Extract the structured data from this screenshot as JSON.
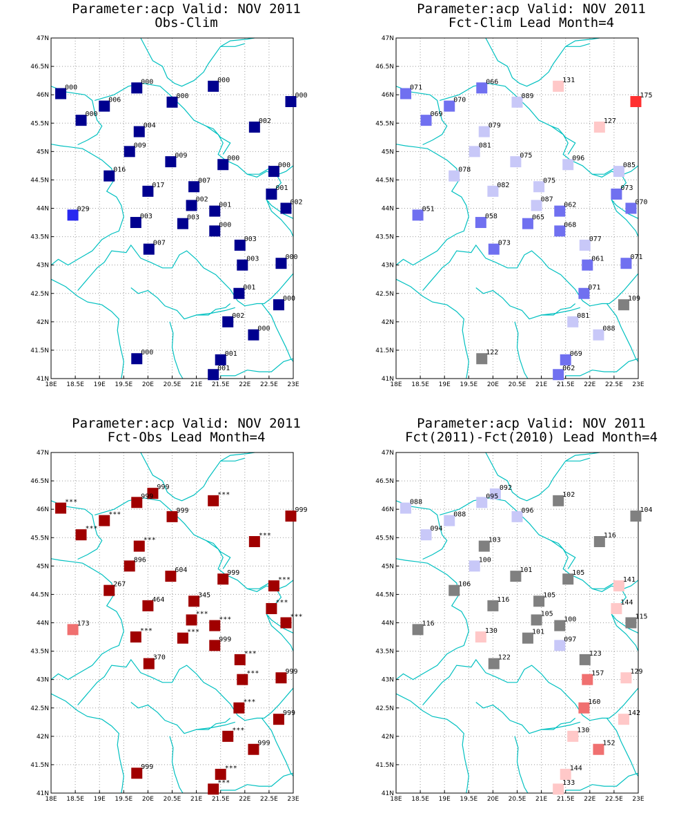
{
  "axes": {
    "x_ticks": [
      "18E",
      "18.5E",
      "19E",
      "19.5E",
      "20E",
      "20.5E",
      "21E",
      "21.5E",
      "22E",
      "22.5E",
      "23E"
    ],
    "y_ticks": [
      "41N",
      "41.5N",
      "42N",
      "42.5N",
      "43N",
      "43.5N",
      "44N",
      "44.5N",
      "45N",
      "45.5N",
      "46N",
      "46.5N",
      "47N"
    ],
    "lon_range": [
      18,
      23
    ],
    "lat_range": [
      41,
      47
    ],
    "grid": true
  },
  "colors": {
    "frame": "#000000",
    "grid": "#999999",
    "border_line": "#00c0c0"
  },
  "panels": [
    {
      "title1": "Parameter:acp Valid: NOV 2011",
      "title2": "Obs-Clim",
      "stations": [
        {
          "lon": 18.2,
          "lat": 46.02,
          "label": "000",
          "color": "#00008f"
        },
        {
          "lon": 19.77,
          "lat": 46.12,
          "label": "000",
          "color": "#00008f"
        },
        {
          "lon": 21.35,
          "lat": 46.15,
          "label": "000",
          "color": "#00008f"
        },
        {
          "lon": 22.95,
          "lat": 45.88,
          "label": "000",
          "color": "#00008f"
        },
        {
          "lon": 19.1,
          "lat": 45.8,
          "label": "006",
          "color": "#00008f"
        },
        {
          "lon": 20.5,
          "lat": 45.87,
          "label": "000",
          "color": "#00008f"
        },
        {
          "lon": 18.62,
          "lat": 45.55,
          "label": "000",
          "color": "#00008f"
        },
        {
          "lon": 22.2,
          "lat": 45.43,
          "label": "002",
          "color": "#00008f"
        },
        {
          "lon": 19.82,
          "lat": 45.35,
          "label": "004",
          "color": "#00008f"
        },
        {
          "lon": 19.62,
          "lat": 45.0,
          "label": "009",
          "color": "#00008f"
        },
        {
          "lon": 20.47,
          "lat": 44.82,
          "label": "009",
          "color": "#00008f"
        },
        {
          "lon": 21.55,
          "lat": 44.77,
          "label": "000",
          "color": "#00008f"
        },
        {
          "lon": 22.6,
          "lat": 44.65,
          "label": "000",
          "color": "#00008f"
        },
        {
          "lon": 19.2,
          "lat": 44.57,
          "label": "016",
          "color": "#00008f"
        },
        {
          "lon": 20.0,
          "lat": 44.3,
          "label": "017",
          "color": "#00008f"
        },
        {
          "lon": 20.95,
          "lat": 44.38,
          "label": "007",
          "color": "#00008f"
        },
        {
          "lon": 22.55,
          "lat": 44.25,
          "label": "001",
          "color": "#00008f"
        },
        {
          "lon": 20.9,
          "lat": 44.05,
          "label": "002",
          "color": "#00008f"
        },
        {
          "lon": 21.38,
          "lat": 43.95,
          "label": "001",
          "color": "#00008f"
        },
        {
          "lon": 22.85,
          "lat": 44.0,
          "label": "002",
          "color": "#00008f"
        },
        {
          "lon": 18.45,
          "lat": 43.88,
          "label": "029",
          "color": "#2828f0"
        },
        {
          "lon": 19.75,
          "lat": 43.75,
          "label": "003",
          "color": "#00008f"
        },
        {
          "lon": 20.72,
          "lat": 43.73,
          "label": "003",
          "color": "#00008f"
        },
        {
          "lon": 21.38,
          "lat": 43.6,
          "label": "000",
          "color": "#00008f"
        },
        {
          "lon": 21.9,
          "lat": 43.35,
          "label": "003",
          "color": "#00008f"
        },
        {
          "lon": 20.02,
          "lat": 43.28,
          "label": "007",
          "color": "#00008f"
        },
        {
          "lon": 21.95,
          "lat": 43.0,
          "label": "003",
          "color": "#00008f"
        },
        {
          "lon": 22.75,
          "lat": 43.03,
          "label": "000",
          "color": "#00008f"
        },
        {
          "lon": 21.88,
          "lat": 42.5,
          "label": "001",
          "color": "#00008f"
        },
        {
          "lon": 22.7,
          "lat": 42.3,
          "label": "000",
          "color": "#00008f"
        },
        {
          "lon": 21.65,
          "lat": 42.0,
          "label": "002",
          "color": "#00008f"
        },
        {
          "lon": 22.18,
          "lat": 41.77,
          "label": "000",
          "color": "#00008f"
        },
        {
          "lon": 19.77,
          "lat": 41.35,
          "label": "000",
          "color": "#00008f"
        },
        {
          "lon": 21.5,
          "lat": 41.33,
          "label": "001",
          "color": "#00008f"
        },
        {
          "lon": 21.35,
          "lat": 41.07,
          "label": "001",
          "color": "#00008f"
        }
      ]
    },
    {
      "title1": "Parameter:acp Valid: NOV 2011",
      "title2": "Fct-Clim Lead Month=4",
      "stations": [
        {
          "lon": 18.2,
          "lat": 46.02,
          "label": "071",
          "color": "#7070f0"
        },
        {
          "lon": 19.77,
          "lat": 46.12,
          "label": "066",
          "color": "#7070f0"
        },
        {
          "lon": 21.35,
          "lat": 46.15,
          "label": "131",
          "color": "#ffc8c8"
        },
        {
          "lon": 22.95,
          "lat": 45.88,
          "label": "175",
          "color": "#ff3030"
        },
        {
          "lon": 19.1,
          "lat": 45.8,
          "label": "070",
          "color": "#7070f0"
        },
        {
          "lon": 20.5,
          "lat": 45.87,
          "label": "089",
          "color": "#c8c8f8"
        },
        {
          "lon": 18.62,
          "lat": 45.55,
          "label": "069",
          "color": "#7070f0"
        },
        {
          "lon": 22.2,
          "lat": 45.43,
          "label": "127",
          "color": "#ffc8c8"
        },
        {
          "lon": 19.82,
          "lat": 45.35,
          "label": "079",
          "color": "#c8c8f8"
        },
        {
          "lon": 19.62,
          "lat": 45.0,
          "label": "081",
          "color": "#c8c8f8"
        },
        {
          "lon": 20.47,
          "lat": 44.82,
          "label": "075",
          "color": "#c8c8f8"
        },
        {
          "lon": 21.55,
          "lat": 44.77,
          "label": "096",
          "color": "#c8c8f8"
        },
        {
          "lon": 22.6,
          "lat": 44.65,
          "label": "085",
          "color": "#c8c8f8"
        },
        {
          "lon": 19.2,
          "lat": 44.57,
          "label": "078",
          "color": "#c8c8f8"
        },
        {
          "lon": 20.0,
          "lat": 44.3,
          "label": "082",
          "color": "#c8c8f8"
        },
        {
          "lon": 20.95,
          "lat": 44.38,
          "label": "075",
          "color": "#c8c8f8"
        },
        {
          "lon": 22.55,
          "lat": 44.25,
          "label": "073",
          "color": "#7070f0"
        },
        {
          "lon": 20.9,
          "lat": 44.05,
          "label": "087",
          "color": "#c8c8f8"
        },
        {
          "lon": 21.38,
          "lat": 43.95,
          "label": "062",
          "color": "#7070f0"
        },
        {
          "lon": 22.85,
          "lat": 44.0,
          "label": "070",
          "color": "#7070f0"
        },
        {
          "lon": 18.45,
          "lat": 43.88,
          "label": "051",
          "color": "#7070f0"
        },
        {
          "lon": 19.75,
          "lat": 43.75,
          "label": "058",
          "color": "#7070f0"
        },
        {
          "lon": 20.72,
          "lat": 43.73,
          "label": "065",
          "color": "#7070f0"
        },
        {
          "lon": 21.38,
          "lat": 43.6,
          "label": "068",
          "color": "#7070f0"
        },
        {
          "lon": 21.9,
          "lat": 43.35,
          "label": "077",
          "color": "#c8c8f8"
        },
        {
          "lon": 20.02,
          "lat": 43.28,
          "label": "073",
          "color": "#7070f0"
        },
        {
          "lon": 21.95,
          "lat": 43.0,
          "label": "061",
          "color": "#7070f0"
        },
        {
          "lon": 22.75,
          "lat": 43.03,
          "label": "071",
          "color": "#7070f0"
        },
        {
          "lon": 21.88,
          "lat": 42.5,
          "label": "071",
          "color": "#7070f0"
        },
        {
          "lon": 22.7,
          "lat": 42.3,
          "label": "109",
          "color": "#808080"
        },
        {
          "lon": 21.65,
          "lat": 42.0,
          "label": "081",
          "color": "#c8c8f8"
        },
        {
          "lon": 22.18,
          "lat": 41.77,
          "label": "088",
          "color": "#c8c8f8"
        },
        {
          "lon": 19.77,
          "lat": 41.35,
          "label": "122",
          "color": "#808080"
        },
        {
          "lon": 21.5,
          "lat": 41.33,
          "label": "069",
          "color": "#7070f0"
        },
        {
          "lon": 21.35,
          "lat": 41.07,
          "label": "062",
          "color": "#7070f0"
        }
      ]
    },
    {
      "title1": "Parameter:acp Valid: NOV 2011",
      "title2": "Fct-Obs Lead Month=4",
      "stations": [
        {
          "lon": 18.2,
          "lat": 46.02,
          "label": "***",
          "color": "#a00000"
        },
        {
          "lon": 20.1,
          "lat": 46.28,
          "label": "999",
          "color": "#a00000"
        },
        {
          "lon": 19.77,
          "lat": 46.12,
          "label": "999",
          "color": "#a00000"
        },
        {
          "lon": 21.35,
          "lat": 46.15,
          "label": "***",
          "color": "#a00000"
        },
        {
          "lon": 22.95,
          "lat": 45.88,
          "label": "999",
          "color": "#a00000"
        },
        {
          "lon": 19.1,
          "lat": 45.8,
          "label": "***",
          "color": "#a00000"
        },
        {
          "lon": 20.5,
          "lat": 45.87,
          "label": "999",
          "color": "#a00000"
        },
        {
          "lon": 18.62,
          "lat": 45.55,
          "label": "***",
          "color": "#a00000"
        },
        {
          "lon": 22.2,
          "lat": 45.43,
          "label": "***",
          "color": "#a00000"
        },
        {
          "lon": 19.82,
          "lat": 45.35,
          "label": "***",
          "color": "#a00000"
        },
        {
          "lon": 19.62,
          "lat": 45.0,
          "label": "896",
          "color": "#a00000"
        },
        {
          "lon": 20.47,
          "lat": 44.82,
          "label": "604",
          "color": "#a00000"
        },
        {
          "lon": 21.55,
          "lat": 44.77,
          "label": "999",
          "color": "#a00000"
        },
        {
          "lon": 22.6,
          "lat": 44.65,
          "label": "***",
          "color": "#a00000"
        },
        {
          "lon": 19.2,
          "lat": 44.57,
          "label": "267",
          "color": "#a00000"
        },
        {
          "lon": 20.0,
          "lat": 44.3,
          "label": "464",
          "color": "#a00000"
        },
        {
          "lon": 20.95,
          "lat": 44.38,
          "label": "345",
          "color": "#a00000"
        },
        {
          "lon": 22.55,
          "lat": 44.25,
          "label": "***",
          "color": "#a00000"
        },
        {
          "lon": 20.9,
          "lat": 44.05,
          "label": "***",
          "color": "#a00000"
        },
        {
          "lon": 21.38,
          "lat": 43.95,
          "label": "***",
          "color": "#a00000"
        },
        {
          "lon": 22.85,
          "lat": 44.0,
          "label": "***",
          "color": "#a00000"
        },
        {
          "lon": 18.45,
          "lat": 43.88,
          "label": "173",
          "color": "#f07070"
        },
        {
          "lon": 19.75,
          "lat": 43.75,
          "label": "***",
          "color": "#a00000"
        },
        {
          "lon": 20.72,
          "lat": 43.73,
          "label": "***",
          "color": "#a00000"
        },
        {
          "lon": 21.38,
          "lat": 43.6,
          "label": "999",
          "color": "#a00000"
        },
        {
          "lon": 21.9,
          "lat": 43.35,
          "label": "***",
          "color": "#a00000"
        },
        {
          "lon": 20.02,
          "lat": 43.28,
          "label": "370",
          "color": "#a00000"
        },
        {
          "lon": 21.95,
          "lat": 43.0,
          "label": "***",
          "color": "#a00000"
        },
        {
          "lon": 22.75,
          "lat": 43.03,
          "label": "999",
          "color": "#a00000"
        },
        {
          "lon": 21.88,
          "lat": 42.5,
          "label": "***",
          "color": "#a00000"
        },
        {
          "lon": 22.7,
          "lat": 42.3,
          "label": "999",
          "color": "#a00000"
        },
        {
          "lon": 21.65,
          "lat": 42.0,
          "label": "***",
          "color": "#a00000"
        },
        {
          "lon": 22.18,
          "lat": 41.77,
          "label": "999",
          "color": "#a00000"
        },
        {
          "lon": 19.77,
          "lat": 41.35,
          "label": "999",
          "color": "#a00000"
        },
        {
          "lon": 21.5,
          "lat": 41.33,
          "label": "***",
          "color": "#a00000"
        },
        {
          "lon": 21.35,
          "lat": 41.07,
          "label": "***",
          "color": "#a00000"
        }
      ]
    },
    {
      "title1": "Parameter:acp Valid: NOV 2011",
      "title2": "Fct(2011)-Fct(2010) Lead Month=4",
      "stations": [
        {
          "lon": 18.2,
          "lat": 46.02,
          "label": "088",
          "color": "#c8c8f8"
        },
        {
          "lon": 20.05,
          "lat": 46.27,
          "label": "092",
          "color": "#c8c8f8"
        },
        {
          "lon": 19.77,
          "lat": 46.12,
          "label": "095",
          "color": "#c8c8f8"
        },
        {
          "lon": 21.35,
          "lat": 46.15,
          "label": "102",
          "color": "#808080"
        },
        {
          "lon": 22.95,
          "lat": 45.88,
          "label": "104",
          "color": "#808080"
        },
        {
          "lon": 19.1,
          "lat": 45.8,
          "label": "088",
          "color": "#c8c8f8"
        },
        {
          "lon": 20.5,
          "lat": 45.87,
          "label": "096",
          "color": "#c8c8f8"
        },
        {
          "lon": 18.62,
          "lat": 45.55,
          "label": "094",
          "color": "#c8c8f8"
        },
        {
          "lon": 22.2,
          "lat": 45.43,
          "label": "116",
          "color": "#808080"
        },
        {
          "lon": 19.82,
          "lat": 45.35,
          "label": "103",
          "color": "#808080"
        },
        {
          "lon": 19.62,
          "lat": 45.0,
          "label": "100",
          "color": "#c8c8f8"
        },
        {
          "lon": 20.47,
          "lat": 44.82,
          "label": "101",
          "color": "#808080"
        },
        {
          "lon": 21.55,
          "lat": 44.77,
          "label": "105",
          "color": "#808080"
        },
        {
          "lon": 22.6,
          "lat": 44.65,
          "label": "141",
          "color": "#ffc8c8"
        },
        {
          "lon": 19.2,
          "lat": 44.57,
          "label": "106",
          "color": "#808080"
        },
        {
          "lon": 20.0,
          "lat": 44.3,
          "label": "116",
          "color": "#808080"
        },
        {
          "lon": 20.95,
          "lat": 44.38,
          "label": "105",
          "color": "#808080"
        },
        {
          "lon": 22.55,
          "lat": 44.25,
          "label": "144",
          "color": "#ffc8c8"
        },
        {
          "lon": 20.9,
          "lat": 44.05,
          "label": "105",
          "color": "#808080"
        },
        {
          "lon": 21.38,
          "lat": 43.95,
          "label": "100",
          "color": "#808080"
        },
        {
          "lon": 22.85,
          "lat": 44.0,
          "label": "115",
          "color": "#808080"
        },
        {
          "lon": 18.45,
          "lat": 43.88,
          "label": "116",
          "color": "#808080"
        },
        {
          "lon": 19.75,
          "lat": 43.75,
          "label": "130",
          "color": "#ffc8c8"
        },
        {
          "lon": 20.72,
          "lat": 43.73,
          "label": "101",
          "color": "#808080"
        },
        {
          "lon": 21.38,
          "lat": 43.6,
          "label": "097",
          "color": "#c8c8f8"
        },
        {
          "lon": 21.9,
          "lat": 43.35,
          "label": "123",
          "color": "#808080"
        },
        {
          "lon": 20.02,
          "lat": 43.28,
          "label": "122",
          "color": "#808080"
        },
        {
          "lon": 21.95,
          "lat": 43.0,
          "label": "157",
          "color": "#f07070"
        },
        {
          "lon": 22.75,
          "lat": 43.03,
          "label": "129",
          "color": "#ffc8c8"
        },
        {
          "lon": 21.88,
          "lat": 42.5,
          "label": "160",
          "color": "#f07070"
        },
        {
          "lon": 22.7,
          "lat": 42.3,
          "label": "142",
          "color": "#ffc8c8"
        },
        {
          "lon": 21.65,
          "lat": 42.0,
          "label": "130",
          "color": "#ffc8c8"
        },
        {
          "lon": 22.18,
          "lat": 41.77,
          "label": "152",
          "color": "#f07070"
        },
        {
          "lon": 21.5,
          "lat": 41.33,
          "label": "144",
          "color": "#ffc8c8"
        },
        {
          "lon": 21.35,
          "lat": 41.07,
          "label": "133",
          "color": "#ffc8c8"
        }
      ]
    }
  ]
}
